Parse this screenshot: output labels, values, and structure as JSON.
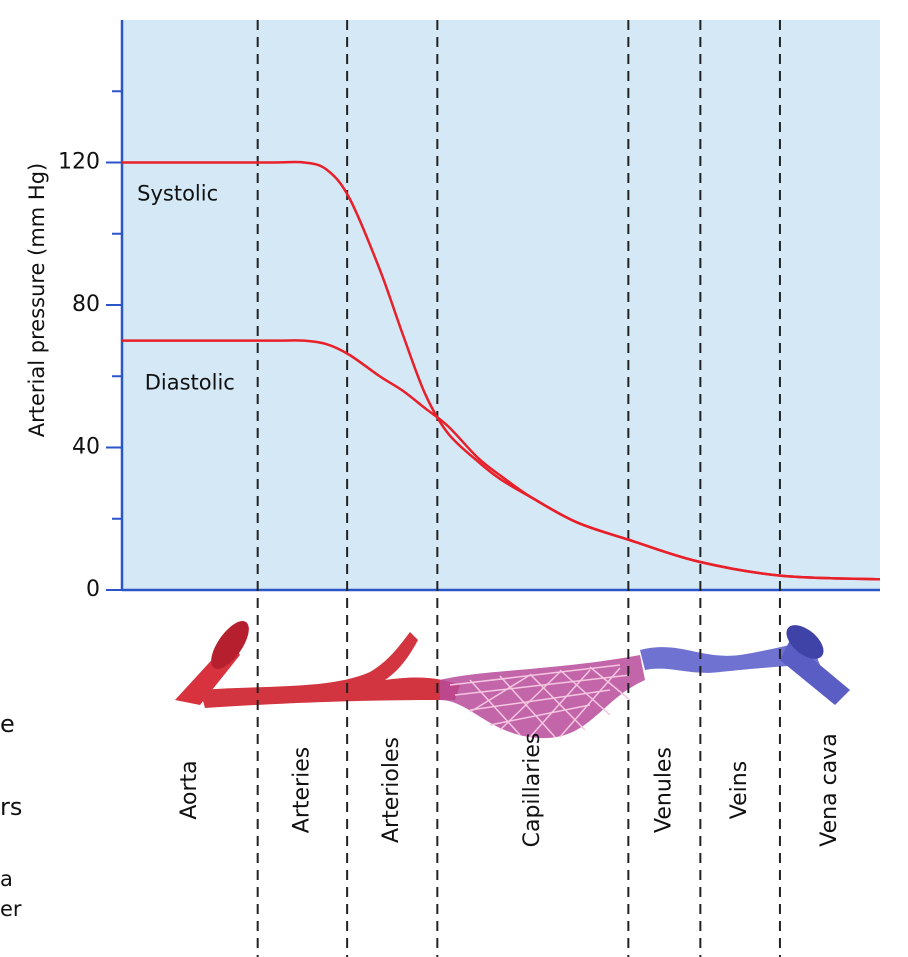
{
  "chart_data": {
    "type": "line",
    "y_label": "Arterial pressure (mm Hg)",
    "ylim": [
      0,
      160
    ],
    "yticks": [
      0,
      40,
      80,
      120
    ],
    "yminorticks": [
      20,
      60,
      100,
      140
    ],
    "xlim": [
      0,
      100
    ],
    "region_boundaries": [
      17.9,
      29.7,
      41.6,
      66.8,
      76.3,
      86.8
    ],
    "categories": [
      "Aorta",
      "Arteries",
      "Arterioles",
      "Capillaries",
      "Venules",
      "Veins",
      "Vena cava"
    ],
    "x": [
      0,
      10,
      20,
      24,
      27,
      30,
      34,
      37,
      40,
      43,
      47,
      50,
      54,
      60,
      67,
      76,
      87,
      100
    ],
    "series": [
      {
        "name": "Systolic",
        "color": "#e8202a",
        "values": [
          120,
          120,
          120,
          120,
          118,
          110,
          90,
          72,
          55,
          44,
          36,
          31,
          26,
          19,
          14,
          8,
          4,
          3
        ],
        "label_x": 2,
        "label_y": 111
      },
      {
        "name": "Diastolic",
        "color": "#e8202a",
        "values": [
          70,
          70,
          70,
          70,
          69,
          66,
          60,
          56,
          51,
          46,
          37,
          32,
          26,
          19,
          14,
          8,
          4,
          3
        ],
        "label_x": 3,
        "label_y": 58
      }
    ],
    "page_fragments": [
      "e",
      "rs",
      "a",
      "er"
    ]
  }
}
